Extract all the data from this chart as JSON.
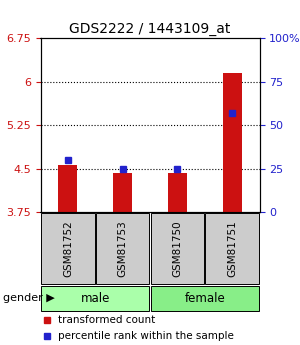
{
  "title": "GDS2222 / 1443109_at",
  "samples": [
    "GSM81752",
    "GSM81753",
    "GSM81750",
    "GSM81751"
  ],
  "red_values": [
    4.57,
    4.43,
    4.43,
    6.15
  ],
  "blue_values": [
    30,
    25,
    25,
    57
  ],
  "ymin": 3.75,
  "ymax": 6.75,
  "yticks": [
    3.75,
    4.5,
    5.25,
    6.0,
    6.75
  ],
  "ytick_labels": [
    "3.75",
    "4.5",
    "5.25",
    "6",
    "6.75"
  ],
  "right_yticks": [
    0,
    25,
    50,
    75,
    100
  ],
  "right_ytick_labels": [
    "0",
    "25",
    "50",
    "75",
    "100%"
  ],
  "bar_color": "#cc1111",
  "dot_color": "#2222cc",
  "bar_width": 0.35,
  "grid_lines": [
    4.5,
    5.25,
    6.0
  ],
  "sample_box_color": "#cccccc",
  "male_color": "#aaffaa",
  "female_color": "#88ee88",
  "legend_items": [
    "transformed count",
    "percentile rank within the sample"
  ],
  "legend_colors": [
    "#cc1111",
    "#2222cc"
  ],
  "group_defs": [
    {
      "label": "male",
      "start": 0,
      "end": 2
    },
    {
      "label": "female",
      "start": 2,
      "end": 4
    }
  ],
  "group_colors": [
    "#aaffaa",
    "#88ee88"
  ]
}
